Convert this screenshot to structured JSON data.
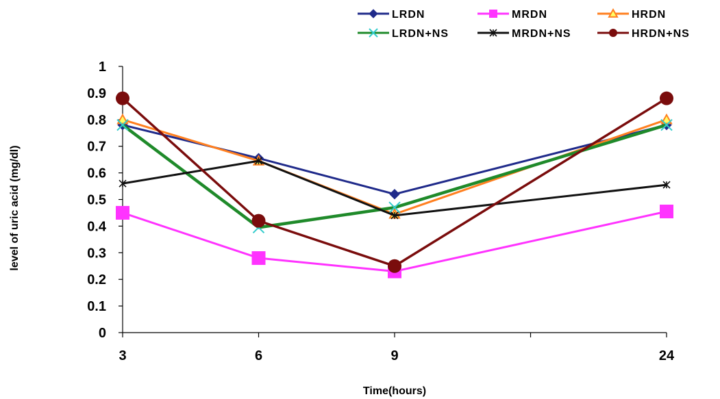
{
  "chart_data": {
    "type": "line",
    "title": "",
    "xlabel": "Time(hours)",
    "ylabel": "level of uric acid (mg/dl)",
    "categories": [
      "3",
      "6",
      "9",
      "",
      "24"
    ],
    "x_positions": [
      0,
      1,
      2,
      3,
      4
    ],
    "ylim": [
      0,
      1
    ],
    "yticks": [
      "0",
      "0.1",
      "0.2",
      "0.3",
      "0.4",
      "0.5",
      "0.6",
      "0.7",
      "0.8",
      "0.9",
      "1"
    ],
    "grid": false,
    "legend_position": "top-right",
    "series": [
      {
        "name": "LRDN",
        "x": [
          0,
          1,
          2,
          4
        ],
        "values": [
          0.78,
          0.655,
          0.52,
          0.78
        ],
        "color": "#1f2a8a",
        "marker": "diamond"
      },
      {
        "name": "MRDN",
        "x": [
          0,
          1,
          2,
          4
        ],
        "values": [
          0.45,
          0.28,
          0.23,
          0.455
        ],
        "color": "#ff33ff",
        "marker": "square"
      },
      {
        "name": "HRDN",
        "x": [
          0,
          1,
          2,
          4
        ],
        "values": [
          0.8,
          0.645,
          0.445,
          0.8
        ],
        "color": "#ff7f1f",
        "marker": "triangle"
      },
      {
        "name": "LRDN+NS",
        "x": [
          0,
          1,
          2,
          4
        ],
        "values": [
          0.78,
          0.395,
          0.47,
          0.78
        ],
        "color": "#1f8a2a",
        "marker": "x"
      },
      {
        "name": "MRDN+NS",
        "x": [
          0,
          1,
          2,
          4
        ],
        "values": [
          0.56,
          0.645,
          0.44,
          0.555
        ],
        "color": "#111111",
        "marker": "star"
      },
      {
        "name": "HRDN+NS",
        "x": [
          0,
          1,
          2,
          4
        ],
        "values": [
          0.88,
          0.42,
          0.25,
          0.88
        ],
        "color": "#7a0c0c",
        "marker": "circle"
      }
    ]
  }
}
